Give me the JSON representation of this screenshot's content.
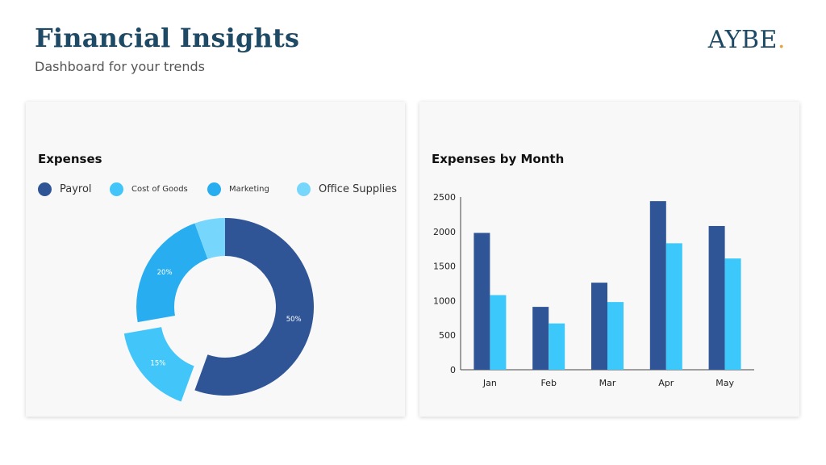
{
  "header": {
    "title": "Financial Insights",
    "subtitle": "Dashboard for your trends",
    "logo": "AYBE",
    "logo_dot": ".",
    "logo_dot_color": "#e8a33c"
  },
  "chart_data": [
    {
      "type": "pie",
      "donut": true,
      "title": "Expenses",
      "legend": "top",
      "slices": [
        {
          "label": "Payrol",
          "value": 50,
          "display": "50%",
          "color": "#2f5597"
        },
        {
          "label": "Cost of Goods",
          "value": 15,
          "display": "15%",
          "color": "#42c6fa",
          "exploded": true
        },
        {
          "label": "Marketing",
          "value": 20,
          "display": "20%",
          "color": "#28aef0"
        },
        {
          "label": "Office Supplies",
          "value": 5,
          "display": "",
          "color": "#76d6fb"
        }
      ]
    },
    {
      "type": "bar",
      "title": "Expenses by Month",
      "categories": [
        "Jan",
        "Feb",
        "Mar",
        "Apr",
        "May"
      ],
      "series": [
        {
          "values": [
            1980,
            910,
            1260,
            2440,
            2080
          ],
          "color": "#2f5597"
        },
        {
          "values": [
            1080,
            670,
            980,
            1830,
            1610
          ],
          "color": "#3dc8fb"
        }
      ],
      "ylim": [
        0,
        2500
      ],
      "yticks": [
        0,
        500,
        1000,
        1500,
        2000,
        2500
      ],
      "grid": false,
      "xlabel": "",
      "ylabel": ""
    }
  ]
}
